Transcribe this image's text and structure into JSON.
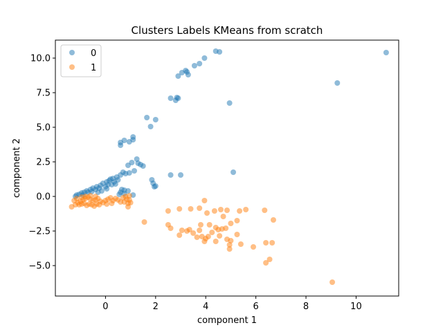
{
  "chart_data": {
    "type": "scatter",
    "title": "Clusters Labels KMeans from scratch",
    "xlabel": "component 1",
    "ylabel": "component 2",
    "xlim": [
      -2.0,
      11.7
    ],
    "ylim": [
      -7.2,
      11.3
    ],
    "xticks": [
      0,
      2,
      4,
      6,
      8,
      10
    ],
    "yticks": [
      -5.0,
      -2.5,
      0.0,
      2.5,
      5.0,
      7.5,
      10.0
    ],
    "xtick_labels": [
      "0",
      "2",
      "4",
      "6",
      "8",
      "10"
    ],
    "ytick_labels": [
      "−5.0",
      "−2.5",
      "0.0",
      "2.5",
      "5.0",
      "7.5",
      "10.0"
    ],
    "grid": false,
    "legend_position": "top-left",
    "series": [
      {
        "name": "0",
        "color": "#1f77b4",
        "points": [
          [
            11.2,
            10.4
          ],
          [
            9.25,
            8.2
          ],
          [
            4.4,
            10.5
          ],
          [
            4.55,
            10.45
          ],
          [
            3.95,
            10.0
          ],
          [
            3.75,
            9.6
          ],
          [
            3.55,
            9.45
          ],
          [
            3.25,
            9.0
          ],
          [
            3.05,
            8.95
          ],
          [
            3.3,
            8.8
          ],
          [
            2.9,
            8.7
          ],
          [
            3.2,
            9.1
          ],
          [
            2.6,
            7.1
          ],
          [
            2.85,
            7.15
          ],
          [
            2.8,
            6.95
          ],
          [
            2.9,
            7.1
          ],
          [
            4.95,
            6.75
          ],
          [
            1.65,
            5.7
          ],
          [
            2.0,
            5.55
          ],
          [
            1.8,
            5.05
          ],
          [
            1.1,
            4.3
          ],
          [
            0.95,
            3.95
          ],
          [
            0.75,
            4.05
          ],
          [
            1.1,
            4.1
          ],
          [
            0.6,
            3.9
          ],
          [
            0.6,
            3.7
          ],
          [
            1.25,
            2.7
          ],
          [
            1.3,
            2.4
          ],
          [
            1.05,
            2.45
          ],
          [
            0.9,
            2.25
          ],
          [
            1.5,
            2.2
          ],
          [
            1.4,
            2.3
          ],
          [
            1.15,
            1.85
          ],
          [
            0.95,
            1.7
          ],
          [
            0.8,
            1.65
          ],
          [
            0.7,
            1.75
          ],
          [
            0.6,
            1.55
          ],
          [
            0.45,
            1.4
          ],
          [
            0.3,
            1.3
          ],
          [
            0.15,
            1.15
          ],
          [
            0.05,
            1.05
          ],
          [
            -0.1,
            0.95
          ],
          [
            0.2,
            1.25
          ],
          [
            0.35,
            1.05
          ],
          [
            0.5,
            1.2
          ],
          [
            0.1,
            0.85
          ],
          [
            -0.2,
            0.8
          ],
          [
            -0.35,
            0.7
          ],
          [
            -0.5,
            0.6
          ],
          [
            -0.6,
            0.5
          ],
          [
            -0.75,
            0.4
          ],
          [
            -0.85,
            0.3
          ],
          [
            -0.95,
            0.25
          ],
          [
            -1.05,
            0.15
          ],
          [
            -1.15,
            0.1
          ],
          [
            -0.4,
            0.5
          ],
          [
            -0.25,
            0.6
          ],
          [
            0.0,
            0.7
          ],
          [
            0.25,
            0.85
          ],
          [
            0.4,
            0.9
          ],
          [
            -0.7,
            0.3
          ],
          [
            -0.55,
            0.35
          ],
          [
            0.65,
            0.5
          ],
          [
            0.75,
            0.45
          ],
          [
            0.6,
            0.3
          ],
          [
            0.9,
            0.4
          ],
          [
            0.55,
            0.15
          ],
          [
            1.1,
            0.1
          ],
          [
            0.75,
            0.2
          ],
          [
            -0.15,
            0.4
          ],
          [
            0.05,
            0.55
          ],
          [
            -0.3,
            0.3
          ],
          [
            1.85,
            1.2
          ],
          [
            1.9,
            0.95
          ],
          [
            2.0,
            0.75
          ],
          [
            1.95,
            0.7
          ],
          [
            2.6,
            1.55
          ],
          [
            3.0,
            1.55
          ],
          [
            5.1,
            1.75
          ],
          [
            -1.2,
            0.0
          ],
          [
            -0.9,
            0.1
          ]
        ]
      },
      {
        "name": "1",
        "color": "#ff7f0e",
        "points": [
          [
            -1.35,
            -0.75
          ],
          [
            -1.2,
            -0.6
          ],
          [
            -1.1,
            -0.45
          ],
          [
            -1.0,
            -0.35
          ],
          [
            -0.9,
            -0.25
          ],
          [
            -0.8,
            -0.15
          ],
          [
            -0.7,
            -0.05
          ],
          [
            -0.6,
            -0.2
          ],
          [
            -0.5,
            -0.3
          ],
          [
            -0.4,
            -0.25
          ],
          [
            -0.3,
            -0.15
          ],
          [
            -0.2,
            -0.35
          ],
          [
            -0.1,
            -0.45
          ],
          [
            0.0,
            -0.3
          ],
          [
            0.1,
            -0.2
          ],
          [
            0.2,
            -0.1
          ],
          [
            0.3,
            -0.3
          ],
          [
            0.4,
            -0.15
          ],
          [
            0.5,
            -0.25
          ],
          [
            0.6,
            -0.4
          ],
          [
            -1.25,
            -0.3
          ],
          [
            -1.05,
            -0.6
          ],
          [
            -0.95,
            -0.55
          ],
          [
            -0.85,
            -0.5
          ],
          [
            -0.75,
            -0.65
          ],
          [
            -0.65,
            -0.55
          ],
          [
            -0.55,
            -0.6
          ],
          [
            -0.45,
            -0.7
          ],
          [
            -0.35,
            -0.55
          ],
          [
            -0.25,
            -0.6
          ],
          [
            -1.15,
            -0.15
          ],
          [
            -0.95,
            -0.05
          ],
          [
            -0.8,
            0.0
          ],
          [
            -0.6,
            0.05
          ],
          [
            -0.4,
            0.0
          ],
          [
            0.7,
            -0.1
          ],
          [
            0.85,
            -0.2
          ],
          [
            0.95,
            -0.25
          ],
          [
            0.75,
            -0.4
          ],
          [
            0.9,
            -0.5
          ],
          [
            0.8,
            0.0
          ],
          [
            0.95,
            0.05
          ],
          [
            1.0,
            -0.45
          ],
          [
            0.25,
            -0.5
          ],
          [
            0.05,
            -0.55
          ],
          [
            0.9,
            -0.75
          ],
          [
            1.55,
            -1.85
          ],
          [
            2.5,
            -1.05
          ],
          [
            2.95,
            -0.9
          ],
          [
            3.4,
            -0.9
          ],
          [
            3.95,
            -0.3
          ],
          [
            3.75,
            -0.85
          ],
          [
            4.35,
            -1.05
          ],
          [
            4.05,
            -1.2
          ],
          [
            4.6,
            -0.95
          ],
          [
            4.85,
            -1.0
          ],
          [
            4.7,
            -1.45
          ],
          [
            5.35,
            -1.05
          ],
          [
            5.6,
            -0.95
          ],
          [
            6.35,
            -1.0
          ],
          [
            6.7,
            -1.7
          ],
          [
            5.25,
            -1.75
          ],
          [
            5.0,
            -1.95
          ],
          [
            4.8,
            -2.3
          ],
          [
            4.65,
            -2.35
          ],
          [
            4.4,
            -2.25
          ],
          [
            4.25,
            -2.6
          ],
          [
            4.55,
            -2.85
          ],
          [
            4.1,
            -2.9
          ],
          [
            3.95,
            -3.25
          ],
          [
            4.0,
            -3.05
          ],
          [
            4.4,
            -3.25
          ],
          [
            4.85,
            -3.1
          ],
          [
            5.0,
            -3.2
          ],
          [
            4.95,
            -3.5
          ],
          [
            4.95,
            -3.8
          ],
          [
            5.25,
            -2.75
          ],
          [
            5.4,
            -3.45
          ],
          [
            5.9,
            -3.65
          ],
          [
            6.4,
            -3.35
          ],
          [
            6.65,
            -3.35
          ],
          [
            6.4,
            -4.8
          ],
          [
            6.55,
            -4.55
          ],
          [
            2.5,
            -2.05
          ],
          [
            2.6,
            -2.3
          ],
          [
            3.05,
            -2.45
          ],
          [
            3.25,
            -2.5
          ],
          [
            3.35,
            -2.4
          ],
          [
            3.5,
            -2.65
          ],
          [
            3.75,
            -2.45
          ],
          [
            3.8,
            -2.05
          ],
          [
            4.15,
            -2.05
          ],
          [
            2.95,
            -2.8
          ],
          [
            3.65,
            -2.95
          ],
          [
            3.85,
            -2.9
          ],
          [
            4.5,
            -2.4
          ],
          [
            9.05,
            -6.2
          ]
        ]
      }
    ]
  }
}
